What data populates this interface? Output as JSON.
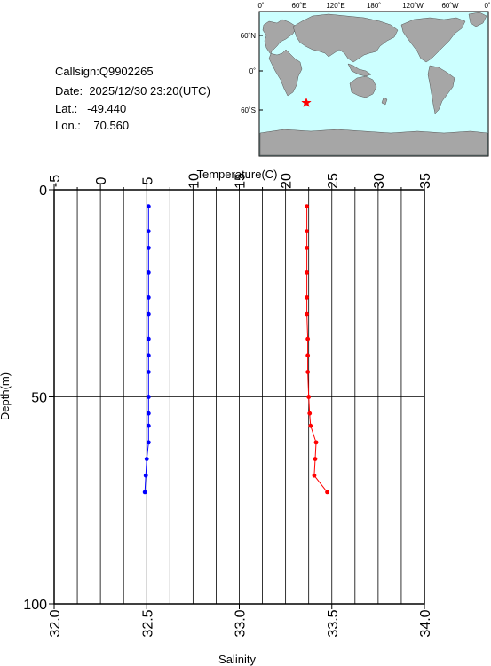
{
  "info": {
    "callsign_label": "Callsign:",
    "callsign": "Q9902265",
    "date_label": "Date:",
    "date": "2025/12/30 23:20(UTC)",
    "lat_label": "Lat.:",
    "lat": "-49.440",
    "lon_label": "Lon.:",
    "lon": "70.560"
  },
  "map": {
    "top_labels": [
      "0˚",
      "60˚E",
      "120˚E",
      "180˚",
      "120˚W",
      "60˚W",
      "0˚"
    ],
    "side_labels": [
      "60˚N",
      "0˚",
      "60˚S"
    ],
    "ocean_color": "#ccffff",
    "land_color": "#a6a6a6",
    "station": {
      "lon": 70.56,
      "lat": -49.44,
      "color": "#ff0000"
    }
  },
  "chart_data": {
    "type": "line",
    "title": "",
    "top_axis": {
      "label": "Temperature(C)",
      "range": [
        -5,
        35
      ],
      "ticks": [
        -5,
        0,
        5,
        10,
        15,
        20,
        25,
        30,
        35
      ]
    },
    "bottom_axis": {
      "label": "Salinity",
      "range": [
        32.0,
        34.0
      ],
      "ticks": [
        "32.0",
        "32.5",
        "33.0",
        "33.5",
        "34.0"
      ]
    },
    "y_axis": {
      "label": "Depth(m)",
      "range": [
        0,
        100
      ],
      "inverted": true,
      "ticks": [
        0,
        50,
        100
      ]
    },
    "grid": true,
    "series": [
      {
        "axis": "salinity",
        "color": "#0000ff",
        "points": [
          [
            32.51,
            4
          ],
          [
            32.51,
            10
          ],
          [
            32.51,
            14
          ],
          [
            32.51,
            20
          ],
          [
            32.51,
            26
          ],
          [
            32.51,
            30
          ],
          [
            32.51,
            36
          ],
          [
            32.51,
            40
          ],
          [
            32.51,
            44
          ],
          [
            32.51,
            50
          ],
          [
            32.51,
            54
          ],
          [
            32.51,
            57
          ],
          [
            32.51,
            61
          ],
          [
            32.5,
            65
          ],
          [
            32.495,
            69
          ],
          [
            32.49,
            73
          ]
        ]
      },
      {
        "axis": "temperature",
        "color": "#ff0000",
        "points": [
          [
            22.3,
            4
          ],
          [
            22.3,
            10
          ],
          [
            22.3,
            14
          ],
          [
            22.3,
            20
          ],
          [
            22.3,
            26
          ],
          [
            22.3,
            30
          ],
          [
            22.4,
            36
          ],
          [
            22.4,
            40
          ],
          [
            22.4,
            44
          ],
          [
            22.5,
            50
          ],
          [
            22.6,
            54
          ],
          [
            22.7,
            57
          ],
          [
            23.3,
            61
          ],
          [
            23.2,
            65
          ],
          [
            23.1,
            69
          ],
          [
            24.5,
            73
          ]
        ]
      }
    ]
  }
}
